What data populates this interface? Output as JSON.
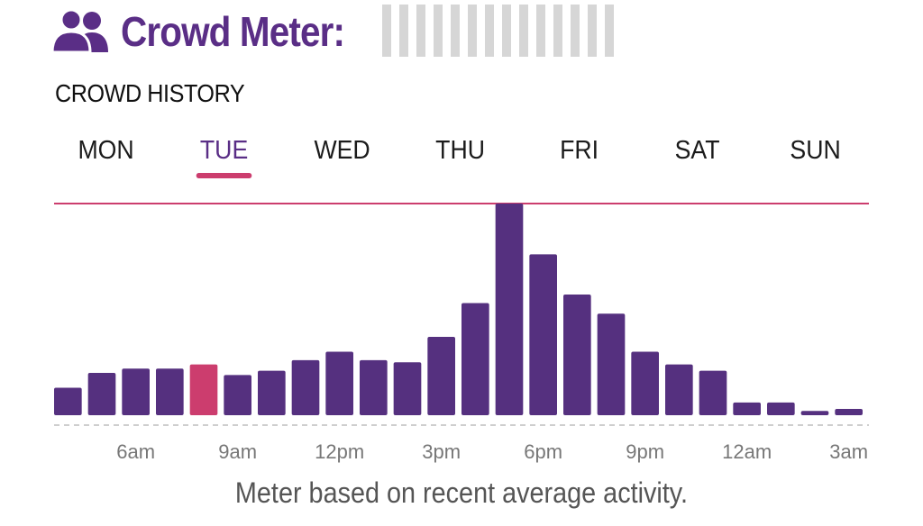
{
  "header": {
    "title": "Crowd Meter:",
    "icon": "people-icon",
    "meter_segments": 14
  },
  "history": {
    "label": "CROWD HISTORY",
    "tabs": [
      "MON",
      "TUE",
      "WED",
      "THU",
      "FRI",
      "SAT",
      "SUN"
    ],
    "active_tab": "TUE"
  },
  "colors": {
    "title": "#5a2e86",
    "bar": "#55307f",
    "current_bar": "#cc3d6e",
    "accent": "#cc3d6e",
    "meter_empty": "#d6d6d6",
    "tick_label": "#777777"
  },
  "chart_data": {
    "type": "bar",
    "title": "",
    "xlabel": "",
    "ylabel": "",
    "ylim": [
      0,
      100
    ],
    "x_tick_labels": [
      "6am",
      "9am",
      "12pm",
      "3pm",
      "6pm",
      "9pm",
      "12am",
      "3am"
    ],
    "highlighted_index": 4,
    "series": [
      {
        "values": [
          13,
          20,
          22,
          22,
          24,
          19,
          21,
          26,
          30,
          26,
          25,
          37,
          53,
          100,
          76,
          57,
          48,
          30,
          24,
          21,
          6,
          6,
          2,
          3
        ]
      }
    ],
    "grid": false,
    "reference_line": "top"
  },
  "footer": {
    "note": "Meter based on recent average activity."
  }
}
